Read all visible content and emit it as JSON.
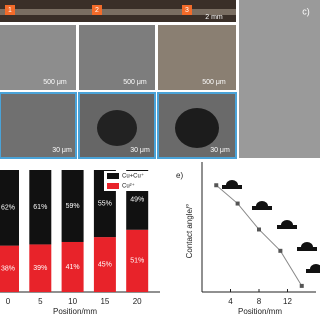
{
  "images": {
    "region_labels": [
      "1",
      "2",
      "3"
    ],
    "top_scale": "2 mm",
    "scale_bars": [
      "500 μm",
      "500 μm",
      "500 μm",
      "30 μm",
      "30 μm",
      "30 μm"
    ],
    "panel_label": "c)"
  },
  "chart_data": [
    {
      "type": "stacked-bar",
      "x_label": "Position/mm",
      "categories": [
        "0",
        "5",
        "10",
        "15",
        "20"
      ],
      "ylim": [
        0,
        100
      ],
      "legend": "top-right",
      "series": [
        {
          "name": "Cu+Cu⁺",
          "color": "#111111",
          "values": [
            62,
            61,
            59,
            55,
            49
          ],
          "value_labels": [
            "62%",
            "61%",
            "59%",
            "55%",
            "49%"
          ]
        },
        {
          "name": "Cu²⁺",
          "color": "#e8232a",
          "values": [
            38,
            39,
            41,
            45,
            51
          ],
          "value_labels": [
            "38%",
            "39%",
            "41%",
            "45%",
            "51%"
          ]
        }
      ]
    },
    {
      "type": "line",
      "panel_label": "e)",
      "x_label": "Position/mm",
      "y_label": "Contact angle/°",
      "x": [
        2,
        5,
        8,
        11,
        14
      ],
      "xlim": [
        0,
        16
      ],
      "xticks": [
        4,
        8,
        12
      ],
      "ylim": [
        0,
        80
      ],
      "series": [
        {
          "color": "#555555",
          "values": [
            70,
            58,
            41,
            27,
            4
          ]
        }
      ]
    }
  ]
}
